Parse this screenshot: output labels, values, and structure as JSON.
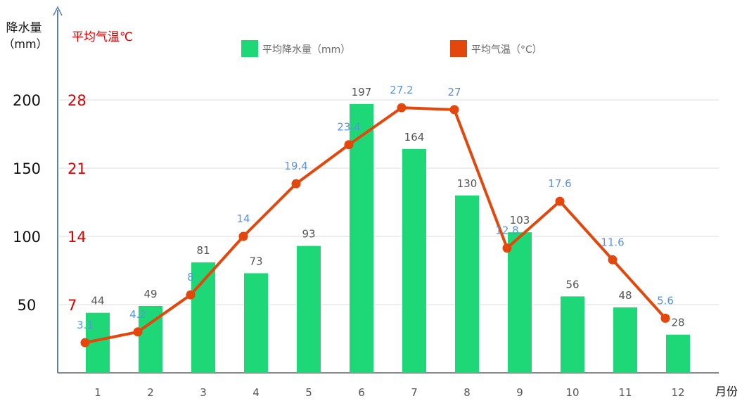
{
  "chart_data": {
    "type": "bar+line",
    "categories": [
      "1",
      "2",
      "3",
      "4",
      "5",
      "6",
      "7",
      "8",
      "9",
      "10",
      "11",
      "12"
    ],
    "xlabel": "月份",
    "y_left": {
      "label_line1": "降水量",
      "label_line2": "（mm）",
      "ticks": [
        "50",
        "100",
        "150",
        "200"
      ],
      "tick_values": [
        50,
        100,
        150,
        200
      ],
      "range": [
        0,
        200
      ]
    },
    "y_right": {
      "label": "平均气温℃",
      "ticks": [
        "7",
        "14",
        "21",
        "28"
      ],
      "tick_values": [
        7,
        14,
        21,
        28
      ],
      "range": [
        0,
        28
      ]
    },
    "series": [
      {
        "name": "平均降水量（mm）",
        "type": "bar",
        "axis": "left",
        "values": [
          44,
          49,
          81,
          73,
          93,
          197,
          164,
          130,
          103,
          56,
          48,
          28
        ],
        "labels": [
          "44",
          "49",
          "81",
          "73",
          "93",
          "197",
          "164",
          "130",
          "103",
          "56",
          "48",
          "28"
        ]
      },
      {
        "name": "平均气温（°C）",
        "type": "line",
        "axis": "right",
        "values": [
          3.1,
          4.2,
          8,
          14,
          19.4,
          23.4,
          27.2,
          27,
          12.8,
          17.6,
          11.6,
          5.6
        ],
        "labels": [
          "3.1",
          "4.2",
          "8",
          "14",
          "19.4",
          "23.4",
          "27.2",
          "27",
          "12.8",
          "17.6",
          "11.6",
          "5.6"
        ]
      }
    ],
    "grid": true,
    "legend_position": "top-center"
  },
  "colors": {
    "bar": "#1ed878",
    "line": "#e4470c",
    "temp_label": "#5b93e3",
    "bar_label": "#555555",
    "right_axis_text": "#e00000",
    "left_axis_text": "#111111",
    "axis_line": "#5a7fb8",
    "grid": "#e8e8e8"
  }
}
